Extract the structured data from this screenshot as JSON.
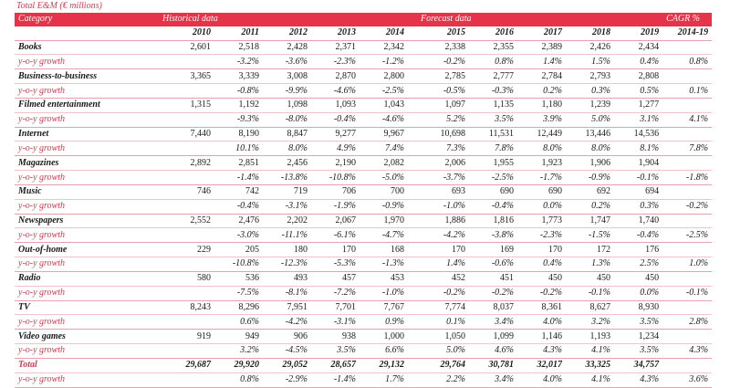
{
  "page_title": "Total E&M (€ millions)",
  "header": {
    "category": "Category",
    "historical": "Historical data",
    "forecast": "Forecast data",
    "cagr": "CAGR %"
  },
  "years": [
    "2010",
    "2011",
    "2012",
    "2013",
    "2014",
    "2015",
    "2016",
    "2017",
    "2018",
    "2019",
    "2014-19"
  ],
  "rows": [
    {
      "name": "Books",
      "values": [
        "2,601",
        "2,518",
        "2,428",
        "2,371",
        "2,342",
        "2,338",
        "2,355",
        "2,389",
        "2,426",
        "2,434"
      ],
      "growth_label": "y-o-y growth",
      "growth": [
        "",
        "-3.2%",
        "-3.6%",
        "-2.3%",
        "-1.2%",
        "-0.2%",
        "0.8%",
        "1.4%",
        "1.5%",
        "0.4%"
      ],
      "cagr": "0.8%"
    },
    {
      "name": "Business-to-business",
      "values": [
        "3,365",
        "3,339",
        "3,008",
        "2,870",
        "2,800",
        "2,785",
        "2,777",
        "2,784",
        "2,793",
        "2,808"
      ],
      "growth_label": "y-o-y growth",
      "growth": [
        "",
        "-0.8%",
        "-9.9%",
        "-4.6%",
        "-2.5%",
        "-0.5%",
        "-0.3%",
        "0.2%",
        "0.3%",
        "0.5%"
      ],
      "cagr": "0.1%"
    },
    {
      "name": "Filmed entertainment",
      "values": [
        "1,315",
        "1,192",
        "1,098",
        "1,093",
        "1,043",
        "1,097",
        "1,135",
        "1,180",
        "1,239",
        "1,277"
      ],
      "growth_label": "y-o-y growth",
      "growth": [
        "",
        "-9.3%",
        "-8.0%",
        "-0.4%",
        "-4.6%",
        "5.2%",
        "3.5%",
        "3.9%",
        "5.0%",
        "3.1%"
      ],
      "cagr": "4.1%"
    },
    {
      "name": "Internet",
      "values": [
        "7,440",
        "8,190",
        "8,847",
        "9,277",
        "9,967",
        "10,698",
        "11,531",
        "12,449",
        "13,446",
        "14,536"
      ],
      "growth_label": "y-o-y growth",
      "growth": [
        "",
        "10.1%",
        "8.0%",
        "4.9%",
        "7.4%",
        "7.3%",
        "7.8%",
        "8.0%",
        "8.0%",
        "8.1%"
      ],
      "cagr": "7.8%"
    },
    {
      "name": "Magazines",
      "values": [
        "2,892",
        "2,851",
        "2,456",
        "2,190",
        "2,082",
        "2,006",
        "1,955",
        "1,923",
        "1,906",
        "1,904"
      ],
      "growth_label": "y-o-y growth",
      "growth": [
        "",
        "-1.4%",
        "-13.8%",
        "-10.8%",
        "-5.0%",
        "-3.7%",
        "-2.5%",
        "-1.7%",
        "-0.9%",
        "-0.1%"
      ],
      "cagr": "-1.8%"
    },
    {
      "name": "Music",
      "values": [
        "746",
        "742",
        "719",
        "706",
        "700",
        "693",
        "690",
        "690",
        "692",
        "694"
      ],
      "growth_label": "y-o-y growth",
      "growth": [
        "",
        "-0.4%",
        "-3.1%",
        "-1.9%",
        "-0.9%",
        "-1.0%",
        "-0.4%",
        "0.0%",
        "0.2%",
        "0.3%"
      ],
      "cagr": "-0.2%"
    },
    {
      "name": "Newspapers",
      "values": [
        "2,552",
        "2,476",
        "2,202",
        "2,067",
        "1,970",
        "1,886",
        "1,816",
        "1,773",
        "1,747",
        "1,740"
      ],
      "growth_label": "y-o-y growth",
      "growth": [
        "",
        "-3.0%",
        "-11.1%",
        "-6.1%",
        "-4.7%",
        "-4.2%",
        "-3.8%",
        "-2.3%",
        "-1.5%",
        "-0.4%"
      ],
      "cagr": "-2.5%"
    },
    {
      "name": "Out-of-home",
      "values": [
        "229",
        "205",
        "180",
        "170",
        "168",
        "170",
        "169",
        "170",
        "172",
        "176"
      ],
      "growth_label": "y-o-y growth",
      "growth": [
        "",
        "-10.8%",
        "-12.3%",
        "-5.3%",
        "-1.3%",
        "1.4%",
        "-0.6%",
        "0.4%",
        "1.3%",
        "2.5%"
      ],
      "cagr": "1.0%"
    },
    {
      "name": "Radio",
      "values": [
        "580",
        "536",
        "493",
        "457",
        "453",
        "452",
        "451",
        "450",
        "450",
        "450"
      ],
      "growth_label": "y-o-y growth",
      "growth": [
        "",
        "-7.5%",
        "-8.1%",
        "-7.2%",
        "-1.0%",
        "-0.2%",
        "-0.2%",
        "-0.2%",
        "-0.1%",
        "0.0%"
      ],
      "cagr": "-0.1%"
    },
    {
      "name": "TV",
      "values": [
        "8,243",
        "8,296",
        "7,951",
        "7,701",
        "7,767",
        "7,774",
        "8,037",
        "8,361",
        "8,627",
        "8,930"
      ],
      "growth_label": "y-o-y growth",
      "growth": [
        "",
        "0.6%",
        "-4.2%",
        "-3.1%",
        "0.9%",
        "0.1%",
        "3.4%",
        "4.0%",
        "3.2%",
        "3.5%"
      ],
      "cagr": "2.8%"
    },
    {
      "name": "Video games",
      "values": [
        "919",
        "949",
        "906",
        "938",
        "1,000",
        "1,050",
        "1,099",
        "1,146",
        "1,193",
        "1,234"
      ],
      "growth_label": "y-o-y growth",
      "growth": [
        "",
        "3.2%",
        "-4.5%",
        "3.5%",
        "6.6%",
        "5.0%",
        "4.6%",
        "4.3%",
        "4.1%",
        "3.5%"
      ],
      "cagr": "4.3%"
    },
    {
      "name": "Total",
      "total": true,
      "values": [
        "29,687",
        "29,920",
        "29,052",
        "28,657",
        "29,132",
        "29,764",
        "30,781",
        "32,017",
        "33,325",
        "34,757"
      ],
      "growth_label": "y-o-y growth",
      "growth": [
        "",
        "0.8%",
        "-2.9%",
        "-1.4%",
        "1.7%",
        "2.2%",
        "3.4%",
        "4.0%",
        "4.1%",
        "4.3%"
      ],
      "cagr": "3.6%"
    }
  ],
  "colors": {
    "accent": "#e4334a",
    "accent_text": "#d43b4e",
    "rule": "#e8a0ac"
  }
}
